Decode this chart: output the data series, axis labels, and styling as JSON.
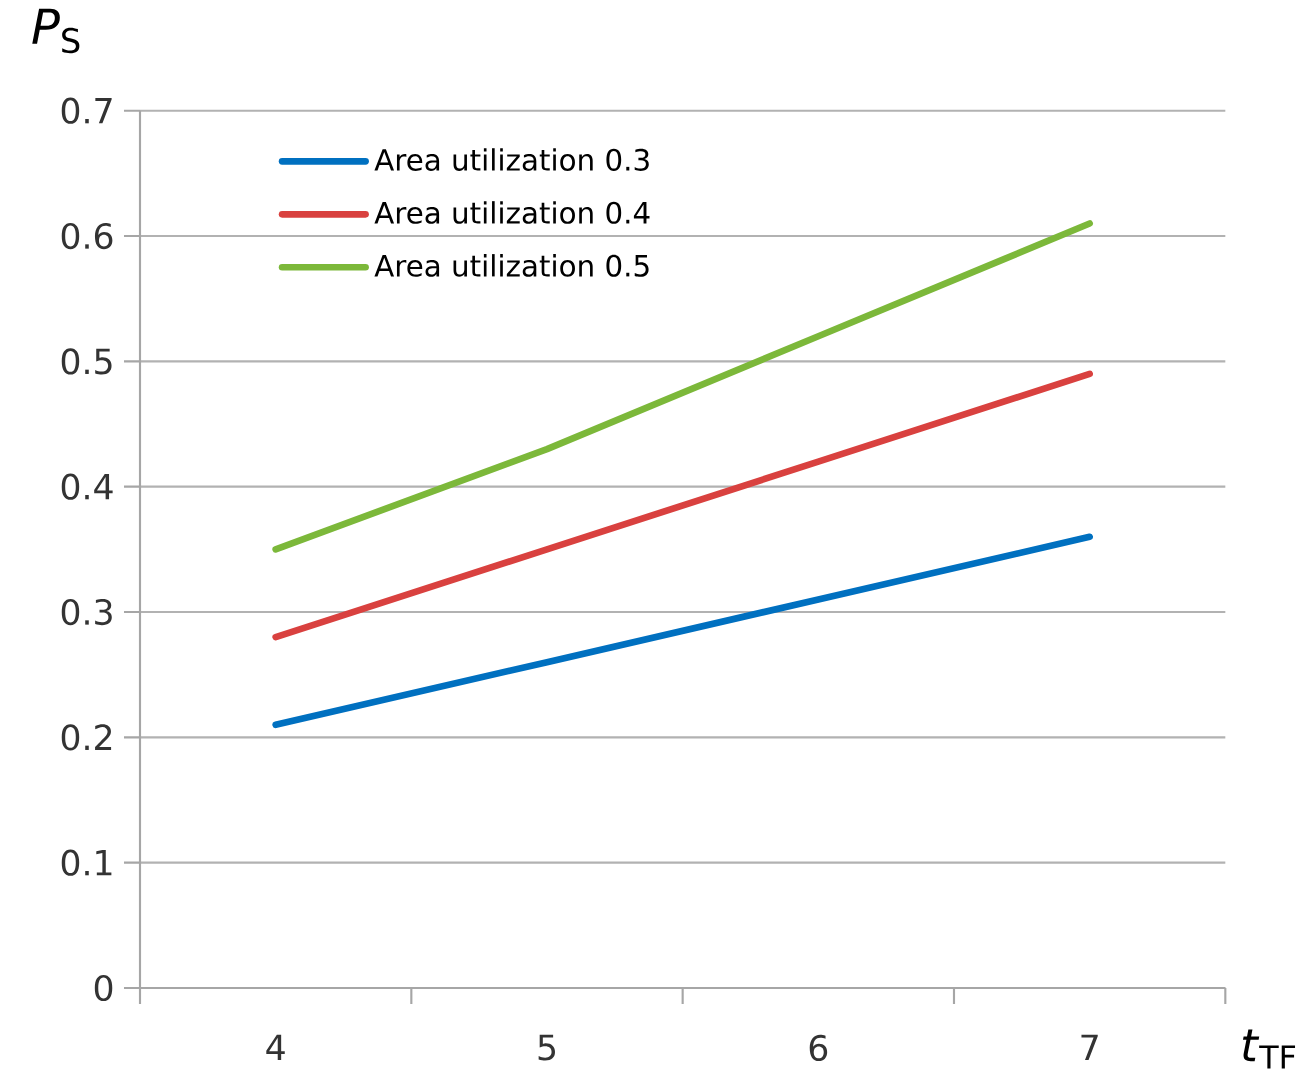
{
  "chart_data": {
    "type": "line",
    "xlabel": "*t*$_{TF}$",
    "ylabel": "*P*$_{S}$",
    "categories": [
      "4",
      "5",
      "6",
      "7"
    ],
    "series": [
      {
        "name": "Area utilization 0.3",
        "color": "#0070c0",
        "values": [
          0.21,
          0.26,
          0.31,
          0.36
        ]
      },
      {
        "name": "Area utilization 0.4",
        "color": "#d9413f",
        "values": [
          0.28,
          0.35,
          0.42,
          0.49
        ]
      },
      {
        "name": "Area utilization 0.5",
        "color": "#7cb83a",
        "values": [
          0.35,
          0.43,
          0.52,
          0.61
        ]
      }
    ],
    "ylim": [
      0,
      0.7
    ],
    "yticks": [
      0,
      0.1,
      0.2,
      0.3,
      0.4,
      0.5,
      0.6,
      0.7
    ],
    "grid": "y",
    "legend": "top left",
    "marker": "none",
    "line_style": "solid"
  }
}
